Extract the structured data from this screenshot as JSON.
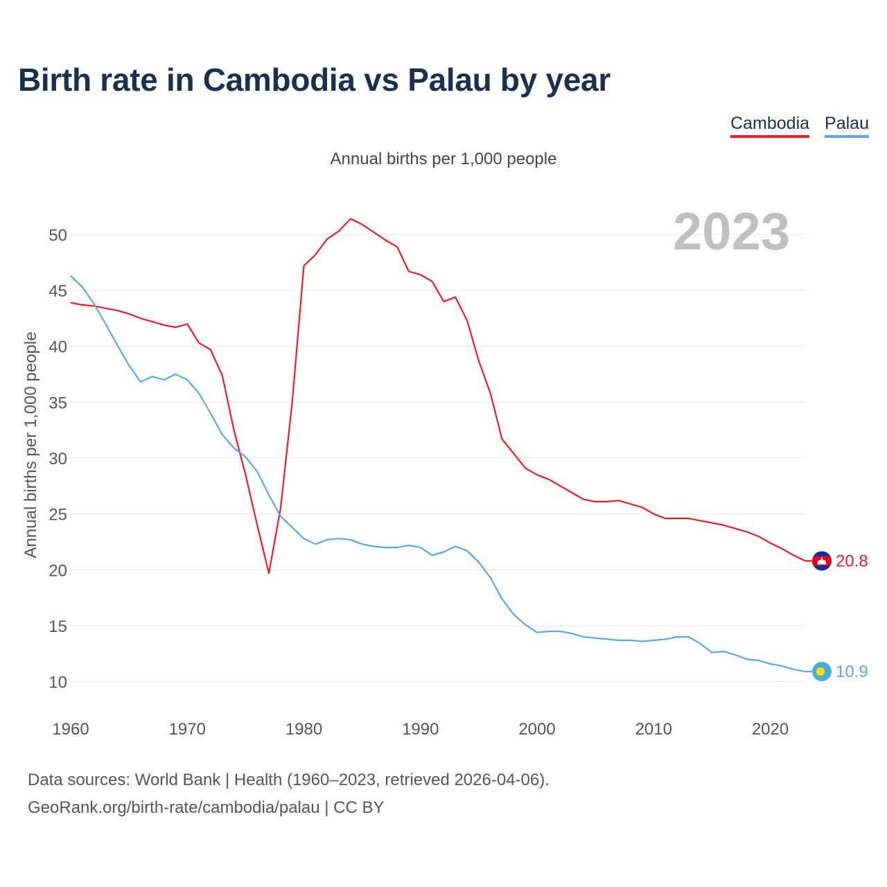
{
  "page": {
    "title": "Birth rate in Cambodia vs Palau by year",
    "subtitle": "Annual births per 1,000 people",
    "legend": [
      "Cambodia",
      "Palau"
    ],
    "footer_line1": "Data sources: World Bank | Health (1960–2023, retrieved 2026-04-06).",
    "footer_line2": "GeoRank.org/birth-rate/cambodia/palau | CC BY"
  },
  "colors": {
    "title": "#1b3050",
    "cambodia": "#ec1c24",
    "palau": "#5aa4ea",
    "grid": "#e6e6e6",
    "year_watermark": "#c0c0c0"
  },
  "chart_data": {
    "type": "line",
    "title": "Birth rate in Cambodia vs Palau by year",
    "subtitle": "Annual births per 1,000 people",
    "ylabel": "Annual births per 1,000 people",
    "xlabel": "",
    "xlim": [
      1960,
      2023
    ],
    "ylim": [
      7.5,
      53
    ],
    "x_ticks": [
      1960,
      1970,
      1980,
      1990,
      2000,
      2010,
      2020
    ],
    "y_ticks": [
      10,
      15,
      20,
      25,
      30,
      35,
      40,
      45,
      50
    ],
    "grid": true,
    "year_label": "2023",
    "legend_position": "top-right",
    "x": [
      1960,
      1961,
      1962,
      1963,
      1964,
      1965,
      1966,
      1967,
      1968,
      1969,
      1970,
      1971,
      1972,
      1973,
      1974,
      1975,
      1976,
      1977,
      1978,
      1979,
      1980,
      1981,
      1982,
      1983,
      1984,
      1985,
      1986,
      1987,
      1988,
      1989,
      1990,
      1991,
      1992,
      1993,
      1994,
      1995,
      1996,
      1997,
      1998,
      1999,
      2000,
      2001,
      2002,
      2003,
      2004,
      2005,
      2006,
      2007,
      2008,
      2009,
      2010,
      2011,
      2012,
      2013,
      2014,
      2015,
      2016,
      2017,
      2018,
      2019,
      2020,
      2021,
      2022,
      2023
    ],
    "series": [
      {
        "name": "Cambodia",
        "color": "#ec1c24",
        "end_label": "20.8",
        "flag": "cambodia-flag-icon",
        "values": [
          43.9,
          43.7,
          43.6,
          43.4,
          43.2,
          42.9,
          42.5,
          42.2,
          41.9,
          41.7,
          42.0,
          40.3,
          39.7,
          37.4,
          32.5,
          28.5,
          24.0,
          19.7,
          25.5,
          35.0,
          47.2,
          48.2,
          49.6,
          50.3,
          51.4,
          50.9,
          50.2,
          49.5,
          48.9,
          46.7,
          46.4,
          45.8,
          44.0,
          44.4,
          42.3,
          38.7,
          35.8,
          31.7,
          30.4,
          29.1,
          28.5,
          28.1,
          27.5,
          26.9,
          26.3,
          26.1,
          26.1,
          26.2,
          25.9,
          25.6,
          25.0,
          24.6,
          24.6,
          24.6,
          24.4,
          24.2,
          24.0,
          23.7,
          23.4,
          23.0,
          22.4,
          21.9,
          21.3,
          20.8
        ]
      },
      {
        "name": "Palau",
        "color": "#5aa4ea",
        "end_label": "10.9",
        "flag": "palau-flag-icon",
        "values": [
          46.3,
          45.3,
          43.8,
          42.0,
          40.1,
          38.3,
          36.8,
          37.3,
          37.0,
          37.5,
          37.0,
          35.8,
          34.0,
          32.1,
          30.9,
          30.1,
          28.8,
          26.7,
          24.8,
          23.8,
          22.8,
          22.3,
          22.7,
          22.8,
          22.7,
          22.3,
          22.1,
          22.0,
          22.0,
          22.2,
          22.0,
          21.3,
          21.6,
          22.1,
          21.7,
          20.7,
          19.3,
          17.4,
          16.0,
          15.1,
          14.4,
          14.5,
          14.5,
          14.3,
          14.0,
          13.9,
          13.8,
          13.7,
          13.7,
          13.6,
          13.7,
          13.8,
          14.0,
          14.0,
          13.4,
          12.6,
          12.7,
          12.4,
          12.0,
          11.9,
          11.6,
          11.4,
          11.1,
          10.9
        ]
      }
    ]
  }
}
